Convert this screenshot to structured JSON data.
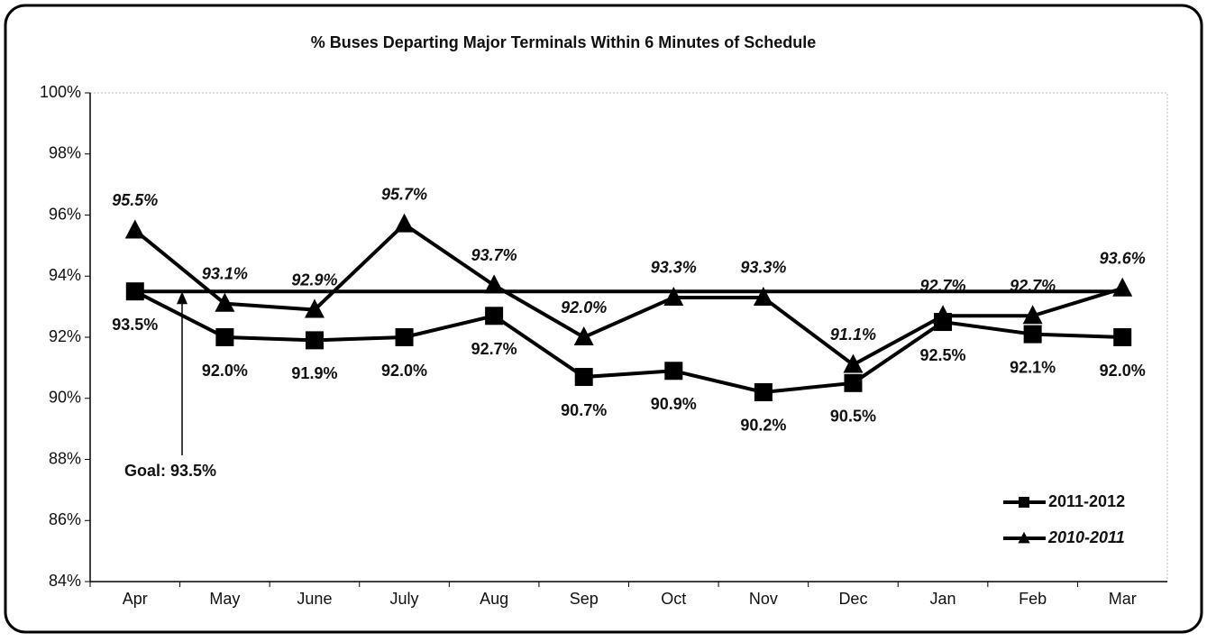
{
  "chart_data": {
    "type": "line",
    "title": "% Buses Departing Major Terminals Within 6 Minutes of Schedule",
    "categories": [
      "Apr",
      "May",
      "June",
      "July",
      "Aug",
      "Sep",
      "Oct",
      "Nov",
      "Dec",
      "Jan",
      "Feb",
      "Mar"
    ],
    "series": [
      {
        "name": "2011-2012",
        "color": "#000000",
        "marker": "square",
        "values": [
          93.5,
          92.0,
          91.9,
          92.0,
          92.7,
          90.7,
          90.9,
          90.2,
          90.5,
          92.5,
          92.1,
          92.0
        ],
        "value_labels": [
          "93.5%",
          "92.0%",
          "91.9%",
          "92.0%",
          "92.7%",
          "90.7%",
          "90.9%",
          "90.2%",
          "90.5%",
          "92.5%",
          "92.1%",
          "92.0%"
        ]
      },
      {
        "name": "2010-2011",
        "color": "#000000",
        "marker": "triangle",
        "values": [
          95.5,
          93.1,
          92.9,
          95.7,
          93.7,
          92.0,
          93.3,
          93.3,
          91.1,
          92.7,
          92.7,
          93.6
        ],
        "value_labels": [
          "95.5%",
          "93.1%",
          "92.9%",
          "95.7%",
          "93.7%",
          "92.0%",
          "93.3%",
          "93.3%",
          "91.1%",
          "92.7%",
          "92.7%",
          "93.6%"
        ]
      }
    ],
    "goal": {
      "value": 93.5,
      "label": "Goal: 93.5%"
    },
    "ylim": [
      84,
      100
    ],
    "yticks": [
      {
        "value": 84,
        "label": "84%"
      },
      {
        "value": 86,
        "label": "86%"
      },
      {
        "value": 88,
        "label": "88%"
      },
      {
        "value": 90,
        "label": "90%"
      },
      {
        "value": 92,
        "label": "92%"
      },
      {
        "value": 94,
        "label": "94%"
      },
      {
        "value": 96,
        "label": "96%"
      },
      {
        "value": 98,
        "label": "98%"
      },
      {
        "value": 100,
        "label": "100%"
      }
    ],
    "legend": "lower right"
  }
}
